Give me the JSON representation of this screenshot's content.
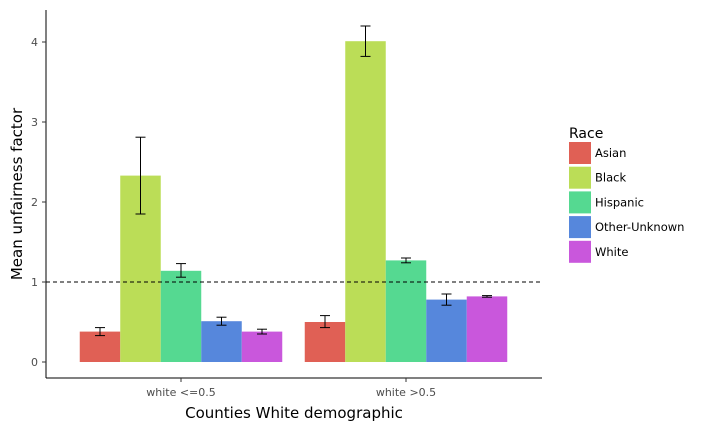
{
  "chart_data": {
    "type": "bar",
    "title": "",
    "xlabel": "Counties White demographic",
    "ylabel": "Mean unfairness factor",
    "categories": [
      "white <=0.5",
      "white >0.5"
    ],
    "ylim": [
      -0.2,
      4.4
    ],
    "yticks": [
      0,
      1,
      2,
      3,
      4
    ],
    "grid": false,
    "reference_line": {
      "y": 1,
      "style": "dashed"
    },
    "legend": {
      "title": "Race",
      "placement": "right"
    },
    "series": [
      {
        "name": "Asian",
        "color": "#e06055",
        "values": [
          0.38,
          0.5
        ],
        "errors": [
          [
            0.33,
            0.43
          ],
          [
            0.43,
            0.58
          ]
        ]
      },
      {
        "name": "Black",
        "color": "#bbdd57",
        "values": [
          2.33,
          4.01
        ],
        "errors": [
          [
            1.85,
            2.81
          ],
          [
            3.82,
            4.2
          ]
        ]
      },
      {
        "name": "Hispanic",
        "color": "#55d991",
        "values": [
          1.14,
          1.27
        ],
        "errors": [
          [
            1.06,
            1.23
          ],
          [
            1.24,
            1.3
          ]
        ]
      },
      {
        "name": "Other-Unknown",
        "color": "#5687dc",
        "values": [
          0.51,
          0.78
        ],
        "errors": [
          [
            0.46,
            0.56
          ],
          [
            0.71,
            0.85
          ]
        ]
      },
      {
        "name": "White",
        "color": "#c957dc",
        "values": [
          0.38,
          0.82
        ],
        "errors": [
          [
            0.35,
            0.41
          ],
          [
            0.81,
            0.83
          ]
        ]
      }
    ]
  }
}
